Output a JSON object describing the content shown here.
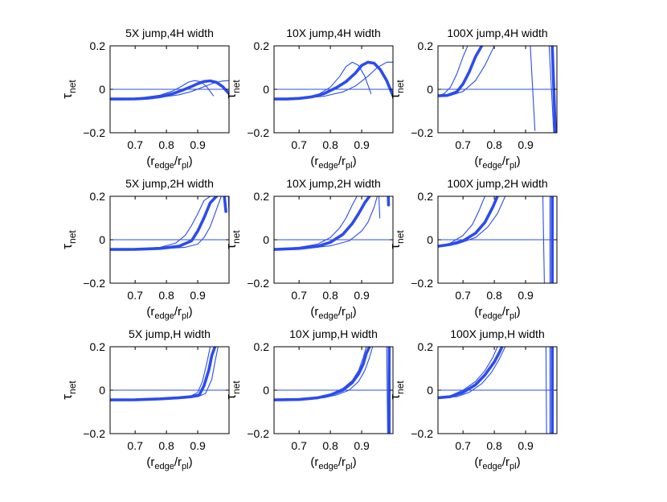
{
  "figure": {
    "line_color": "#2b4cee",
    "axis_color": "#000000"
  },
  "chart_data": [
    {
      "type": "line",
      "title": "5X jump,4H width",
      "xlabel": "",
      "ylabel": "",
      "xlim": [
        0.62,
        1.0
      ],
      "ylim": [
        -0.2,
        0.2
      ],
      "xticks": [
        0.7,
        0.8,
        0.9
      ],
      "yticks": [
        -0.2,
        0,
        0.2
      ],
      "series": [
        {
          "style": "thick",
          "x": [
            0.62,
            0.66,
            0.7,
            0.74,
            0.78,
            0.82,
            0.85,
            0.88,
            0.9,
            0.92,
            0.94,
            0.96,
            0.98,
            1.0
          ],
          "y": [
            -0.045,
            -0.045,
            -0.044,
            -0.041,
            -0.034,
            -0.02,
            -0.005,
            0.013,
            0.026,
            0.036,
            0.039,
            0.032,
            0.012,
            -0.02
          ]
        },
        {
          "style": "thin",
          "x": [
            0.62,
            0.7,
            0.78,
            0.82,
            0.85,
            0.87,
            0.89,
            0.91,
            0.93,
            0.95
          ],
          "y": [
            -0.045,
            -0.043,
            -0.027,
            -0.008,
            0.015,
            0.033,
            0.04,
            0.035,
            0.01,
            -0.03
          ]
        },
        {
          "style": "thin",
          "x": [
            0.62,
            0.7,
            0.78,
            0.84,
            0.88,
            0.92,
            0.95,
            0.98,
            1.0
          ],
          "y": [
            -0.045,
            -0.044,
            -0.037,
            -0.025,
            -0.01,
            0.012,
            0.028,
            0.038,
            0.04
          ]
        }
      ]
    },
    {
      "type": "line",
      "title": "10X jump,4H width",
      "xlabel": "",
      "ylabel": "",
      "xlim": [
        0.62,
        1.0
      ],
      "ylim": [
        -0.2,
        0.2
      ],
      "xticks": [
        0.7,
        0.8,
        0.9
      ],
      "yticks": [
        -0.2,
        0,
        0.2
      ],
      "series": [
        {
          "style": "thick",
          "x": [
            0.62,
            0.66,
            0.7,
            0.74,
            0.78,
            0.82,
            0.85,
            0.88,
            0.9,
            0.92,
            0.94,
            0.96,
            0.98,
            1.0
          ],
          "y": [
            -0.045,
            -0.045,
            -0.042,
            -0.035,
            -0.02,
            0.008,
            0.035,
            0.075,
            0.11,
            0.125,
            0.12,
            0.09,
            0.04,
            -0.03
          ]
        },
        {
          "style": "thin",
          "x": [
            0.62,
            0.7,
            0.76,
            0.8,
            0.83,
            0.85,
            0.87,
            0.89,
            0.91,
            0.93
          ],
          "y": [
            -0.045,
            -0.04,
            -0.025,
            0.01,
            0.06,
            0.105,
            0.125,
            0.11,
            0.06,
            -0.02
          ]
        },
        {
          "style": "thin",
          "x": [
            0.62,
            0.7,
            0.78,
            0.84,
            0.88,
            0.92,
            0.95,
            0.98,
            1.0
          ],
          "y": [
            -0.045,
            -0.043,
            -0.032,
            -0.012,
            0.015,
            0.06,
            0.1,
            0.125,
            0.125
          ]
        }
      ]
    },
    {
      "type": "line",
      "title": "100X jump,4H width",
      "xlabel": "",
      "ylabel": "",
      "xlim": [
        0.62,
        1.0
      ],
      "ylim": [
        -0.2,
        0.2
      ],
      "xticks": [
        0.7,
        0.8,
        0.9
      ],
      "yticks": [
        -0.2,
        0,
        0.2
      ],
      "series": [
        {
          "style": "thick",
          "x": [
            0.62,
            0.65,
            0.68,
            0.7,
            0.72,
            0.74,
            0.76
          ],
          "y": [
            -0.03,
            -0.028,
            -0.012,
            0.025,
            0.08,
            0.15,
            0.2
          ]
        },
        {
          "style": "thin",
          "x": [
            0.62,
            0.64,
            0.66,
            0.68,
            0.7,
            0.715
          ],
          "y": [
            -0.03,
            -0.02,
            0.01,
            0.07,
            0.15,
            0.2
          ]
        },
        {
          "style": "thin",
          "x": [
            0.62,
            0.66,
            0.7,
            0.74,
            0.77,
            0.8
          ],
          "y": [
            -0.03,
            -0.028,
            -0.01,
            0.04,
            0.11,
            0.2
          ]
        },
        {
          "style": "thin",
          "x": [
            0.915,
            0.93
          ],
          "y": [
            0.2,
            -0.19
          ]
        },
        {
          "style": "thick",
          "x": [
            0.985,
            0.995
          ],
          "y": [
            0.2,
            -0.2
          ]
        },
        {
          "style": "thin",
          "x": [
            0.975,
            0.99
          ],
          "y": [
            0.2,
            -0.2
          ]
        }
      ]
    },
    {
      "type": "line",
      "title": "5X jump,2H width",
      "xlabel": "",
      "ylabel": "",
      "xlim": [
        0.62,
        1.0
      ],
      "ylim": [
        -0.2,
        0.2
      ],
      "xticks": [
        0.7,
        0.8,
        0.9
      ],
      "yticks": [
        -0.2,
        0,
        0.2
      ],
      "series": [
        {
          "style": "thick",
          "x": [
            0.62,
            0.7,
            0.78,
            0.84,
            0.88,
            0.9,
            0.92,
            0.94,
            0.96
          ],
          "y": [
            -0.045,
            -0.044,
            -0.04,
            -0.03,
            -0.005,
            0.04,
            0.1,
            0.17,
            0.2
          ]
        },
        {
          "style": "thin",
          "x": [
            0.62,
            0.7,
            0.78,
            0.83,
            0.86,
            0.88,
            0.9,
            0.92,
            0.94
          ],
          "y": [
            -0.045,
            -0.043,
            -0.035,
            -0.015,
            0.02,
            0.065,
            0.12,
            0.18,
            0.2
          ]
        },
        {
          "style": "thin",
          "x": [
            0.62,
            0.7,
            0.8,
            0.86,
            0.9,
            0.92,
            0.94,
            0.96,
            0.975
          ],
          "y": [
            -0.045,
            -0.044,
            -0.04,
            -0.035,
            -0.02,
            0.01,
            0.06,
            0.14,
            0.2
          ]
        },
        {
          "style": "thick",
          "x": [
            0.985,
            0.99
          ],
          "y": [
            0.2,
            0.13
          ]
        },
        {
          "style": "thin",
          "x": [
            0.998,
            1.0
          ],
          "y": [
            0.2,
            0.11
          ]
        }
      ]
    },
    {
      "type": "line",
      "title": "10X jump,2H width",
      "xlabel": "",
      "ylabel": "",
      "xlim": [
        0.62,
        1.0
      ],
      "ylim": [
        -0.2,
        0.2
      ],
      "xticks": [
        0.7,
        0.8,
        0.9
      ],
      "yticks": [
        -0.2,
        0,
        0.2
      ],
      "series": [
        {
          "style": "thick",
          "x": [
            0.62,
            0.7,
            0.76,
            0.8,
            0.84,
            0.87,
            0.89,
            0.91,
            0.925
          ],
          "y": [
            -0.045,
            -0.04,
            -0.03,
            -0.012,
            0.025,
            0.075,
            0.12,
            0.17,
            0.2
          ]
        },
        {
          "style": "thin",
          "x": [
            0.62,
            0.7,
            0.76,
            0.8,
            0.83,
            0.85,
            0.87,
            0.885
          ],
          "y": [
            -0.045,
            -0.035,
            -0.02,
            0.01,
            0.055,
            0.1,
            0.16,
            0.2
          ]
        },
        {
          "style": "thin",
          "x": [
            0.62,
            0.72,
            0.8,
            0.86,
            0.9,
            0.92,
            0.94,
            0.95
          ],
          "y": [
            -0.045,
            -0.04,
            -0.028,
            -0.005,
            0.04,
            0.08,
            0.15,
            0.2
          ]
        },
        {
          "style": "thin",
          "x": [
            0.955,
            0.958
          ],
          "y": [
            0.2,
            0.1
          ]
        },
        {
          "style": "thick",
          "x": [
            0.985,
            0.986
          ],
          "y": [
            0.2,
            0.16
          ]
        }
      ]
    },
    {
      "type": "line",
      "title": "100X jump,2H width",
      "xlabel": "",
      "ylabel": "",
      "xlim": [
        0.62,
        1.0
      ],
      "ylim": [
        -0.2,
        0.2
      ],
      "xticks": [
        0.7,
        0.8,
        0.9
      ],
      "yticks": [
        -0.2,
        0,
        0.2
      ],
      "series": [
        {
          "style": "thick",
          "x": [
            0.62,
            0.66,
            0.7,
            0.74,
            0.77,
            0.795,
            0.81
          ],
          "y": [
            -0.03,
            -0.022,
            -0.005,
            0.03,
            0.08,
            0.15,
            0.2
          ]
        },
        {
          "style": "thin",
          "x": [
            0.62,
            0.66,
            0.7,
            0.73,
            0.75,
            0.77
          ],
          "y": [
            -0.03,
            -0.015,
            0.02,
            0.07,
            0.13,
            0.2
          ]
        },
        {
          "style": "thin",
          "x": [
            0.62,
            0.68,
            0.74,
            0.78,
            0.81,
            0.835
          ],
          "y": [
            -0.03,
            -0.02,
            0.01,
            0.06,
            0.12,
            0.2
          ]
        },
        {
          "style": "thin",
          "x": [
            0.955,
            0.96
          ],
          "y": [
            0.2,
            -0.2
          ]
        },
        {
          "style": "thick",
          "x": [
            0.985,
            0.985
          ],
          "y": [
            0.2,
            -0.2
          ]
        },
        {
          "style": "thin",
          "x": [
            0.978,
            0.978
          ],
          "y": [
            0.2,
            -0.2
          ]
        }
      ]
    },
    {
      "type": "line",
      "title": "5X jump,H width",
      "xlabel": "",
      "ylabel": "",
      "xlim": [
        0.62,
        1.0
      ],
      "ylim": [
        -0.2,
        0.2
      ],
      "xticks": [
        0.7,
        0.8,
        0.9
      ],
      "yticks": [
        -0.2,
        0,
        0.2
      ],
      "series": [
        {
          "style": "thick",
          "x": [
            0.62,
            0.7,
            0.78,
            0.84,
            0.88,
            0.905,
            0.92,
            0.935,
            0.945,
            0.955
          ],
          "y": [
            -0.045,
            -0.044,
            -0.04,
            -0.035,
            -0.03,
            -0.022,
            0.02,
            0.09,
            0.16,
            0.2
          ]
        },
        {
          "style": "thin",
          "x": [
            0.62,
            0.7,
            0.78,
            0.84,
            0.88,
            0.9,
            0.915,
            0.93,
            0.94
          ],
          "y": [
            -0.045,
            -0.044,
            -0.04,
            -0.034,
            -0.025,
            -0.01,
            0.04,
            0.13,
            0.2
          ]
        },
        {
          "style": "thin",
          "x": [
            0.62,
            0.7,
            0.8,
            0.86,
            0.9,
            0.925,
            0.945,
            0.955,
            0.965
          ],
          "y": [
            -0.045,
            -0.044,
            -0.04,
            -0.036,
            -0.03,
            -0.015,
            0.05,
            0.13,
            0.2
          ]
        }
      ]
    },
    {
      "type": "line",
      "title": "10X jump,H width",
      "xlabel": "",
      "ylabel": "",
      "xlim": [
        0.62,
        1.0
      ],
      "ylim": [
        -0.2,
        0.2
      ],
      "xticks": [
        0.7,
        0.8,
        0.9
      ],
      "yticks": [
        -0.2,
        0,
        0.2
      ],
      "series": [
        {
          "style": "thick",
          "x": [
            0.62,
            0.7,
            0.76,
            0.8,
            0.84,
            0.87,
            0.89,
            0.905,
            0.915,
            0.925
          ],
          "y": [
            -0.045,
            -0.043,
            -0.035,
            -0.022,
            0.0,
            0.035,
            0.075,
            0.12,
            0.17,
            0.2
          ]
        },
        {
          "style": "thin",
          "x": [
            0.62,
            0.7,
            0.76,
            0.8,
            0.84,
            0.87,
            0.89,
            0.905,
            0.915
          ],
          "y": [
            -0.045,
            -0.042,
            -0.032,
            -0.018,
            0.008,
            0.045,
            0.09,
            0.15,
            0.2
          ]
        },
        {
          "style": "thin",
          "x": [
            0.62,
            0.7,
            0.78,
            0.82,
            0.86,
            0.89,
            0.91,
            0.925,
            0.935
          ],
          "y": [
            -0.045,
            -0.043,
            -0.035,
            -0.022,
            0.0,
            0.04,
            0.09,
            0.15,
            0.2
          ]
        },
        {
          "style": "thin",
          "x": [
            0.98,
            0.983
          ],
          "y": [
            0.2,
            -0.2
          ]
        },
        {
          "style": "thick",
          "x": [
            0.988,
            0.988
          ],
          "y": [
            0.2,
            -0.2
          ]
        }
      ]
    },
    {
      "type": "line",
      "title": "100X jump,H width",
      "xlabel": "",
      "ylabel": "",
      "xlim": [
        0.62,
        1.0
      ],
      "ylim": [
        -0.2,
        0.2
      ],
      "xticks": [
        0.7,
        0.8,
        0.9
      ],
      "yticks": [
        -0.2,
        0,
        0.2
      ],
      "series": [
        {
          "style": "thick",
          "x": [
            0.62,
            0.66,
            0.7,
            0.74,
            0.77,
            0.8,
            0.815,
            0.825
          ],
          "y": [
            -0.035,
            -0.03,
            -0.01,
            0.025,
            0.07,
            0.13,
            0.17,
            0.2
          ]
        },
        {
          "style": "thin",
          "x": [
            0.62,
            0.66,
            0.7,
            0.74,
            0.77,
            0.795,
            0.81
          ],
          "y": [
            -0.035,
            -0.025,
            0.0,
            0.04,
            0.09,
            0.15,
            0.2
          ]
        },
        {
          "style": "thin",
          "x": [
            0.62,
            0.68,
            0.72,
            0.76,
            0.79,
            0.815,
            0.835
          ],
          "y": [
            -0.035,
            -0.03,
            -0.01,
            0.03,
            0.08,
            0.14,
            0.2
          ]
        },
        {
          "style": "thin",
          "x": [
            0.965,
            0.967
          ],
          "y": [
            0.2,
            -0.2
          ]
        },
        {
          "style": "thick",
          "x": [
            0.985,
            0.985
          ],
          "y": [
            0.2,
            -0.2
          ]
        },
        {
          "style": "thin",
          "x": [
            0.978,
            0.978
          ],
          "y": [
            0.2,
            -0.2
          ]
        }
      ]
    }
  ],
  "labels": {
    "ylabel_main": "τ",
    "ylabel_sub": "net",
    "xlabel_open": "(r",
    "xlabel_sub1": "edge",
    "xlabel_mid": "/r",
    "xlabel_sub2": "pl",
    "xlabel_close": ")"
  }
}
